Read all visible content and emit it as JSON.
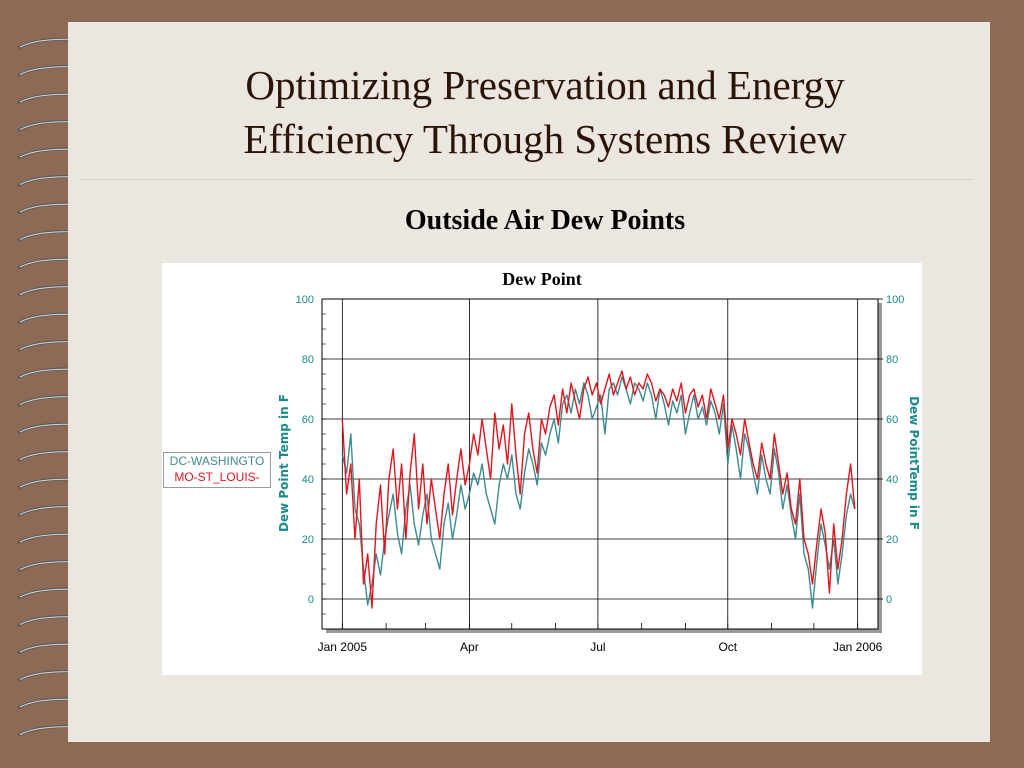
{
  "slide": {
    "title_lines": [
      "Optimizing Preservation and Energy",
      "Efficiency Through Systems Review"
    ],
    "subtitle": "Outside Air Dew Points"
  },
  "colors": {
    "frame": "#8c6a55",
    "paper": "#ece6e0",
    "series_washington": "#3d8a90",
    "series_st_louis": "#e0161e",
    "axis_label": "#1a8a8a"
  },
  "chart_data": {
    "type": "line",
    "title": "Dew Point",
    "ylabel": "Dew Point Temp in F",
    "y2label": "Dew PointTemp in F",
    "ylim": [
      -10,
      100
    ],
    "yticks": [
      0,
      20,
      40,
      60,
      80,
      100
    ],
    "x_range": [
      "2005-01-01",
      "2006-01-01"
    ],
    "xticks": [
      {
        "label": "Jan 2005",
        "date": "2005-01-01"
      },
      {
        "label": "Apr",
        "date": "2005-04-01"
      },
      {
        "label": "Jul",
        "date": "2005-07-01"
      },
      {
        "label": "Oct",
        "date": "2005-10-01"
      },
      {
        "label": "Jan 2006",
        "date": "2006-01-01"
      }
    ],
    "grid": true,
    "legend_placement": "left",
    "series": [
      {
        "name": "DC-WASHINGTO",
        "color": "#3d8a90",
        "points": [
          [
            "2005-01-01",
            48
          ],
          [
            "2005-01-04",
            42
          ],
          [
            "2005-01-07",
            55
          ],
          [
            "2005-01-10",
            30
          ],
          [
            "2005-01-13",
            25
          ],
          [
            "2005-01-16",
            10
          ],
          [
            "2005-01-19",
            -2
          ],
          [
            "2005-01-22",
            5
          ],
          [
            "2005-01-25",
            15
          ],
          [
            "2005-01-28",
            8
          ],
          [
            "2005-01-31",
            20
          ],
          [
            "2005-02-03",
            28
          ],
          [
            "2005-02-06",
            35
          ],
          [
            "2005-02-09",
            22
          ],
          [
            "2005-02-12",
            15
          ],
          [
            "2005-02-15",
            30
          ],
          [
            "2005-02-18",
            38
          ],
          [
            "2005-02-21",
            25
          ],
          [
            "2005-02-24",
            18
          ],
          [
            "2005-02-27",
            28
          ],
          [
            "2005-03-02",
            35
          ],
          [
            "2005-03-05",
            20
          ],
          [
            "2005-03-08",
            15
          ],
          [
            "2005-03-11",
            10
          ],
          [
            "2005-03-14",
            25
          ],
          [
            "2005-03-17",
            32
          ],
          [
            "2005-03-20",
            20
          ],
          [
            "2005-03-23",
            28
          ],
          [
            "2005-03-26",
            38
          ],
          [
            "2005-03-29",
            30
          ],
          [
            "2005-04-01",
            35
          ],
          [
            "2005-04-04",
            42
          ],
          [
            "2005-04-07",
            38
          ],
          [
            "2005-04-10",
            45
          ],
          [
            "2005-04-13",
            35
          ],
          [
            "2005-04-16",
            30
          ],
          [
            "2005-04-19",
            25
          ],
          [
            "2005-04-22",
            38
          ],
          [
            "2005-04-25",
            45
          ],
          [
            "2005-04-28",
            40
          ],
          [
            "2005-05-01",
            48
          ],
          [
            "2005-05-04",
            35
          ],
          [
            "2005-05-07",
            30
          ],
          [
            "2005-05-10",
            42
          ],
          [
            "2005-05-13",
            50
          ],
          [
            "2005-05-16",
            45
          ],
          [
            "2005-05-19",
            38
          ],
          [
            "2005-05-22",
            52
          ],
          [
            "2005-05-25",
            48
          ],
          [
            "2005-05-28",
            55
          ],
          [
            "2005-05-31",
            60
          ],
          [
            "2005-06-03",
            52
          ],
          [
            "2005-06-06",
            65
          ],
          [
            "2005-06-09",
            68
          ],
          [
            "2005-06-12",
            62
          ],
          [
            "2005-06-15",
            70
          ],
          [
            "2005-06-18",
            65
          ],
          [
            "2005-06-21",
            72
          ],
          [
            "2005-06-24",
            68
          ],
          [
            "2005-06-27",
            60
          ],
          [
            "2005-06-30",
            64
          ],
          [
            "2005-07-03",
            68
          ],
          [
            "2005-07-06",
            55
          ],
          [
            "2005-07-09",
            70
          ],
          [
            "2005-07-12",
            72
          ],
          [
            "2005-07-15",
            68
          ],
          [
            "2005-07-18",
            74
          ],
          [
            "2005-07-21",
            70
          ],
          [
            "2005-07-24",
            65
          ],
          [
            "2005-07-27",
            72
          ],
          [
            "2005-07-30",
            70
          ],
          [
            "2005-08-02",
            66
          ],
          [
            "2005-08-05",
            72
          ],
          [
            "2005-08-08",
            68
          ],
          [
            "2005-08-11",
            60
          ],
          [
            "2005-08-14",
            70
          ],
          [
            "2005-08-17",
            65
          ],
          [
            "2005-08-20",
            58
          ],
          [
            "2005-08-23",
            66
          ],
          [
            "2005-08-26",
            62
          ],
          [
            "2005-08-29",
            68
          ],
          [
            "2005-09-01",
            55
          ],
          [
            "2005-09-04",
            62
          ],
          [
            "2005-09-07",
            68
          ],
          [
            "2005-09-10",
            60
          ],
          [
            "2005-09-13",
            64
          ],
          [
            "2005-09-16",
            58
          ],
          [
            "2005-09-19",
            66
          ],
          [
            "2005-09-22",
            62
          ],
          [
            "2005-09-25",
            55
          ],
          [
            "2005-09-28",
            65
          ],
          [
            "2005-10-01",
            45
          ],
          [
            "2005-10-04",
            58
          ],
          [
            "2005-10-07",
            50
          ],
          [
            "2005-10-10",
            40
          ],
          [
            "2005-10-13",
            55
          ],
          [
            "2005-10-16",
            50
          ],
          [
            "2005-10-19",
            42
          ],
          [
            "2005-10-22",
            35
          ],
          [
            "2005-10-25",
            48
          ],
          [
            "2005-10-28",
            40
          ],
          [
            "2005-10-31",
            35
          ],
          [
            "2005-11-03",
            50
          ],
          [
            "2005-11-06",
            42
          ],
          [
            "2005-11-09",
            30
          ],
          [
            "2005-11-12",
            38
          ],
          [
            "2005-11-15",
            28
          ],
          [
            "2005-11-18",
            20
          ],
          [
            "2005-11-21",
            35
          ],
          [
            "2005-11-24",
            15
          ],
          [
            "2005-11-27",
            10
          ],
          [
            "2005-11-30",
            -3
          ],
          [
            "2005-12-03",
            12
          ],
          [
            "2005-12-06",
            25
          ],
          [
            "2005-12-09",
            18
          ],
          [
            "2005-12-12",
            10
          ],
          [
            "2005-12-15",
            20
          ],
          [
            "2005-12-18",
            5
          ],
          [
            "2005-12-21",
            15
          ],
          [
            "2005-12-24",
            28
          ],
          [
            "2005-12-27",
            35
          ],
          [
            "2005-12-30",
            30
          ]
        ]
      },
      {
        "name": "MO-ST_LOUIS-",
        "color": "#e0161e",
        "points": [
          [
            "2005-01-01",
            60
          ],
          [
            "2005-01-04",
            35
          ],
          [
            "2005-01-07",
            45
          ],
          [
            "2005-01-10",
            20
          ],
          [
            "2005-01-13",
            40
          ],
          [
            "2005-01-16",
            5
          ],
          [
            "2005-01-19",
            15
          ],
          [
            "2005-01-22",
            -3
          ],
          [
            "2005-01-25",
            25
          ],
          [
            "2005-01-28",
            38
          ],
          [
            "2005-01-31",
            15
          ],
          [
            "2005-02-03",
            40
          ],
          [
            "2005-02-06",
            50
          ],
          [
            "2005-02-09",
            30
          ],
          [
            "2005-02-12",
            45
          ],
          [
            "2005-02-15",
            20
          ],
          [
            "2005-02-18",
            42
          ],
          [
            "2005-02-21",
            55
          ],
          [
            "2005-02-24",
            30
          ],
          [
            "2005-02-27",
            45
          ],
          [
            "2005-03-02",
            25
          ],
          [
            "2005-03-05",
            40
          ],
          [
            "2005-03-08",
            30
          ],
          [
            "2005-03-11",
            20
          ],
          [
            "2005-03-14",
            35
          ],
          [
            "2005-03-17",
            45
          ],
          [
            "2005-03-20",
            28
          ],
          [
            "2005-03-23",
            40
          ],
          [
            "2005-03-26",
            50
          ],
          [
            "2005-03-29",
            38
          ],
          [
            "2005-04-01",
            45
          ],
          [
            "2005-04-04",
            55
          ],
          [
            "2005-04-07",
            48
          ],
          [
            "2005-04-10",
            60
          ],
          [
            "2005-04-13",
            50
          ],
          [
            "2005-04-16",
            40
          ],
          [
            "2005-04-19",
            62
          ],
          [
            "2005-04-22",
            50
          ],
          [
            "2005-04-25",
            58
          ],
          [
            "2005-04-28",
            45
          ],
          [
            "2005-05-01",
            65
          ],
          [
            "2005-05-04",
            48
          ],
          [
            "2005-05-07",
            35
          ],
          [
            "2005-05-10",
            55
          ],
          [
            "2005-05-13",
            62
          ],
          [
            "2005-05-16",
            50
          ],
          [
            "2005-05-19",
            42
          ],
          [
            "2005-05-22",
            60
          ],
          [
            "2005-05-25",
            55
          ],
          [
            "2005-05-28",
            64
          ],
          [
            "2005-05-31",
            68
          ],
          [
            "2005-06-03",
            58
          ],
          [
            "2005-06-06",
            70
          ],
          [
            "2005-06-09",
            62
          ],
          [
            "2005-06-12",
            72
          ],
          [
            "2005-06-15",
            66
          ],
          [
            "2005-06-18",
            60
          ],
          [
            "2005-06-21",
            70
          ],
          [
            "2005-06-24",
            74
          ],
          [
            "2005-06-27",
            68
          ],
          [
            "2005-06-30",
            72
          ],
          [
            "2005-07-03",
            65
          ],
          [
            "2005-07-06",
            70
          ],
          [
            "2005-07-09",
            75
          ],
          [
            "2005-07-12",
            68
          ],
          [
            "2005-07-15",
            72
          ],
          [
            "2005-07-18",
            76
          ],
          [
            "2005-07-21",
            70
          ],
          [
            "2005-07-24",
            74
          ],
          [
            "2005-07-27",
            68
          ],
          [
            "2005-07-30",
            72
          ],
          [
            "2005-08-02",
            70
          ],
          [
            "2005-08-05",
            75
          ],
          [
            "2005-08-08",
            72
          ],
          [
            "2005-08-11",
            66
          ],
          [
            "2005-08-14",
            70
          ],
          [
            "2005-08-17",
            68
          ],
          [
            "2005-08-20",
            64
          ],
          [
            "2005-08-23",
            70
          ],
          [
            "2005-08-26",
            66
          ],
          [
            "2005-08-29",
            72
          ],
          [
            "2005-09-01",
            62
          ],
          [
            "2005-09-04",
            68
          ],
          [
            "2005-09-07",
            70
          ],
          [
            "2005-09-10",
            64
          ],
          [
            "2005-09-13",
            68
          ],
          [
            "2005-09-16",
            60
          ],
          [
            "2005-09-19",
            70
          ],
          [
            "2005-09-22",
            65
          ],
          [
            "2005-09-25",
            60
          ],
          [
            "2005-09-28",
            68
          ],
          [
            "2005-10-01",
            50
          ],
          [
            "2005-10-04",
            60
          ],
          [
            "2005-10-07",
            55
          ],
          [
            "2005-10-10",
            48
          ],
          [
            "2005-10-13",
            60
          ],
          [
            "2005-10-16",
            52
          ],
          [
            "2005-10-19",
            45
          ],
          [
            "2005-10-22",
            40
          ],
          [
            "2005-10-25",
            52
          ],
          [
            "2005-10-28",
            45
          ],
          [
            "2005-10-31",
            40
          ],
          [
            "2005-11-03",
            55
          ],
          [
            "2005-11-06",
            45
          ],
          [
            "2005-11-09",
            35
          ],
          [
            "2005-11-12",
            42
          ],
          [
            "2005-11-15",
            30
          ],
          [
            "2005-11-18",
            25
          ],
          [
            "2005-11-21",
            40
          ],
          [
            "2005-11-24",
            20
          ],
          [
            "2005-11-27",
            15
          ],
          [
            "2005-11-30",
            5
          ],
          [
            "2005-12-03",
            18
          ],
          [
            "2005-12-06",
            30
          ],
          [
            "2005-12-09",
            22
          ],
          [
            "2005-12-12",
            2
          ],
          [
            "2005-12-15",
            25
          ],
          [
            "2005-12-18",
            10
          ],
          [
            "2005-12-21",
            20
          ],
          [
            "2005-12-24",
            35
          ],
          [
            "2005-12-27",
            45
          ],
          [
            "2005-12-30",
            30
          ]
        ]
      }
    ]
  }
}
